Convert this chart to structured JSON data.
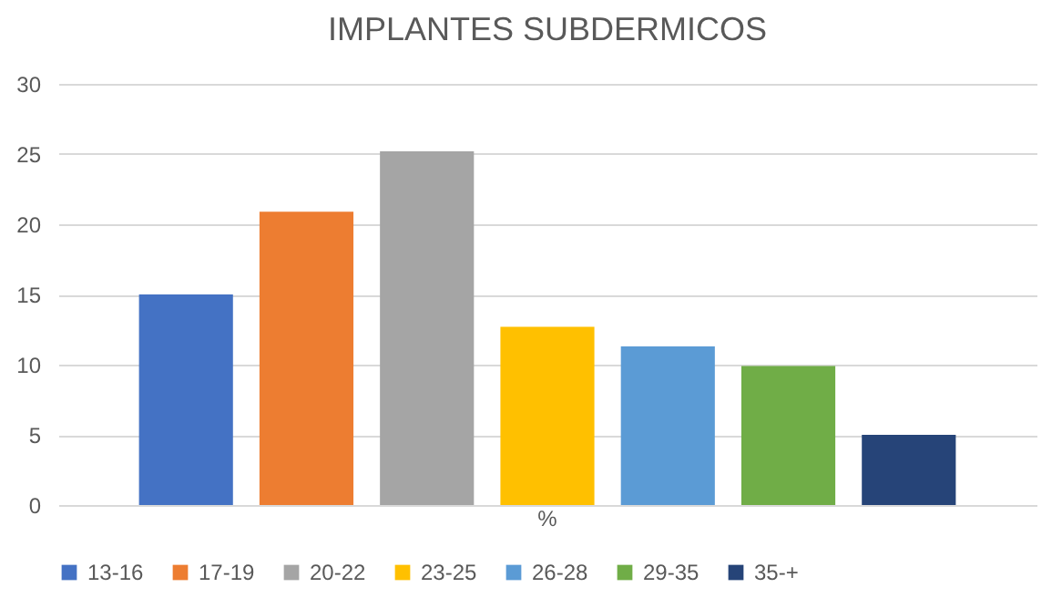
{
  "chart_data": {
    "type": "bar",
    "title": "IMPLANTES SUBDERMICOS",
    "categories": [
      "%"
    ],
    "series": [
      {
        "name": "13-16",
        "color": "#4472c4",
        "values": [
          15
        ]
      },
      {
        "name": "17-19",
        "color": "#ed7d31",
        "values": [
          20.9
        ]
      },
      {
        "name": "20-22",
        "color": "#a5a5a5",
        "values": [
          25.2
        ]
      },
      {
        "name": "23-25",
        "color": "#ffc000",
        "values": [
          12.7
        ]
      },
      {
        "name": "26-28",
        "color": "#5b9bd5",
        "values": [
          11.3
        ]
      },
      {
        "name": "29-35",
        "color": "#70ad47",
        "values": [
          9.9
        ]
      },
      {
        "name": "35-+",
        "color": "#264478",
        "values": [
          5
        ]
      }
    ],
    "ylim": [
      0,
      30
    ],
    "yticks": [
      0,
      5,
      10,
      15,
      20,
      25,
      30
    ],
    "grid": "y",
    "legend": "bottom"
  }
}
